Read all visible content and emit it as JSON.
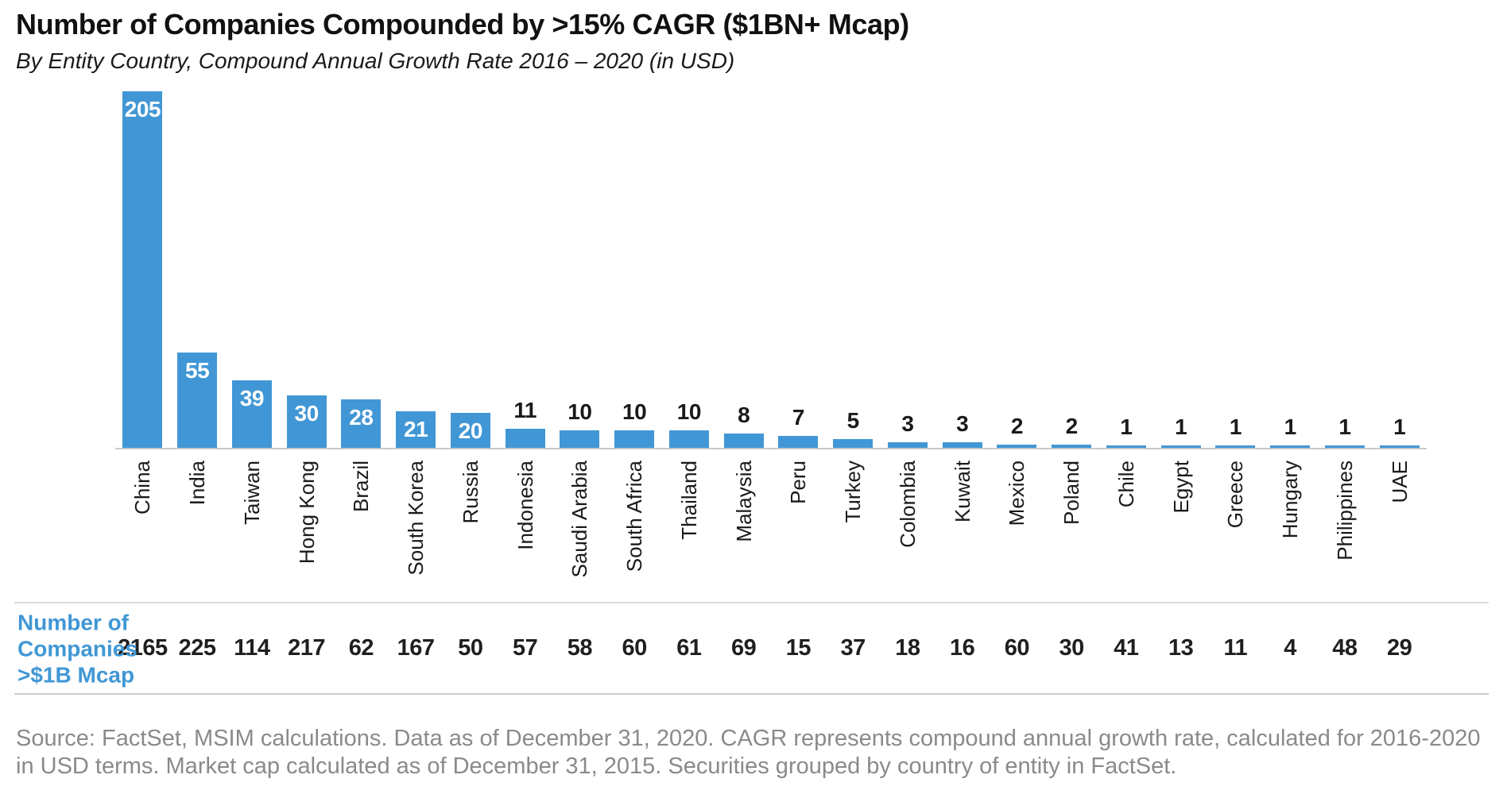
{
  "header": {
    "title": "Number of Companies Compounded by >15% CAGR ($1BN+ Mcap)",
    "subtitle": "By Entity Country, Compound Annual Growth Rate 2016 – 2020 (in USD)"
  },
  "chart_data": {
    "type": "bar",
    "title": "Number of Companies Compounded by >15% CAGR ($1BN+ Mcap)",
    "subtitle": "By Entity Country, Compound Annual Growth Rate 2016 – 2020 (in USD)",
    "categories": [
      "China",
      "India",
      "Taiwan",
      "Hong Kong",
      "Brazil",
      "South Korea",
      "Russia",
      "Indonesia",
      "Saudi Arabia",
      "South Africa",
      "Thailand",
      "Malaysia",
      "Peru",
      "Turkey",
      "Colombia",
      "Kuwait",
      "Mexico",
      "Poland",
      "Chile",
      "Egypt",
      "Greece",
      "Hungary",
      "Philippines",
      "UAE"
    ],
    "series": [
      {
        "name": "Number of Companies Compounded by >15% CAGR",
        "values": [
          205,
          55,
          39,
          30,
          28,
          21,
          20,
          11,
          10,
          10,
          10,
          8,
          7,
          5,
          3,
          3,
          2,
          2,
          1,
          1,
          1,
          1,
          1,
          1
        ]
      },
      {
        "name": "Number of Companies >$1B Mcap",
        "values": [
          2165,
          225,
          114,
          217,
          62,
          167,
          50,
          57,
          58,
          60,
          61,
          69,
          15,
          37,
          18,
          16,
          60,
          30,
          41,
          13,
          11,
          4,
          48,
          29
        ]
      }
    ],
    "ylim": [
      0,
      205
    ],
    "grid": false,
    "legend": "none",
    "value_label_style": "white inside bar top for values >= 20, black above bar for values < 20",
    "x_tick_label_rotation": 90
  },
  "table": {
    "row_label": "Number of\nCompanies\n>$1B Mcap"
  },
  "footer": {
    "source": "Source: FactSet, MSIM calculations. Data as of December 31, 2020. CAGR represents compound annual growth rate, calculated for 2016-2020 in USD terms. Market cap calculated as of December 31, 2015. Securities grouped by country of entity in FactSet."
  },
  "colors": {
    "bar_blue": "#4197D5",
    "row_label_blue": "#4197D5",
    "axis_gray": "#C9C9C9",
    "divider_gray": "#CCCCCC",
    "source_gray": "#8A8A8A",
    "text_black": "#1A1A1A"
  }
}
